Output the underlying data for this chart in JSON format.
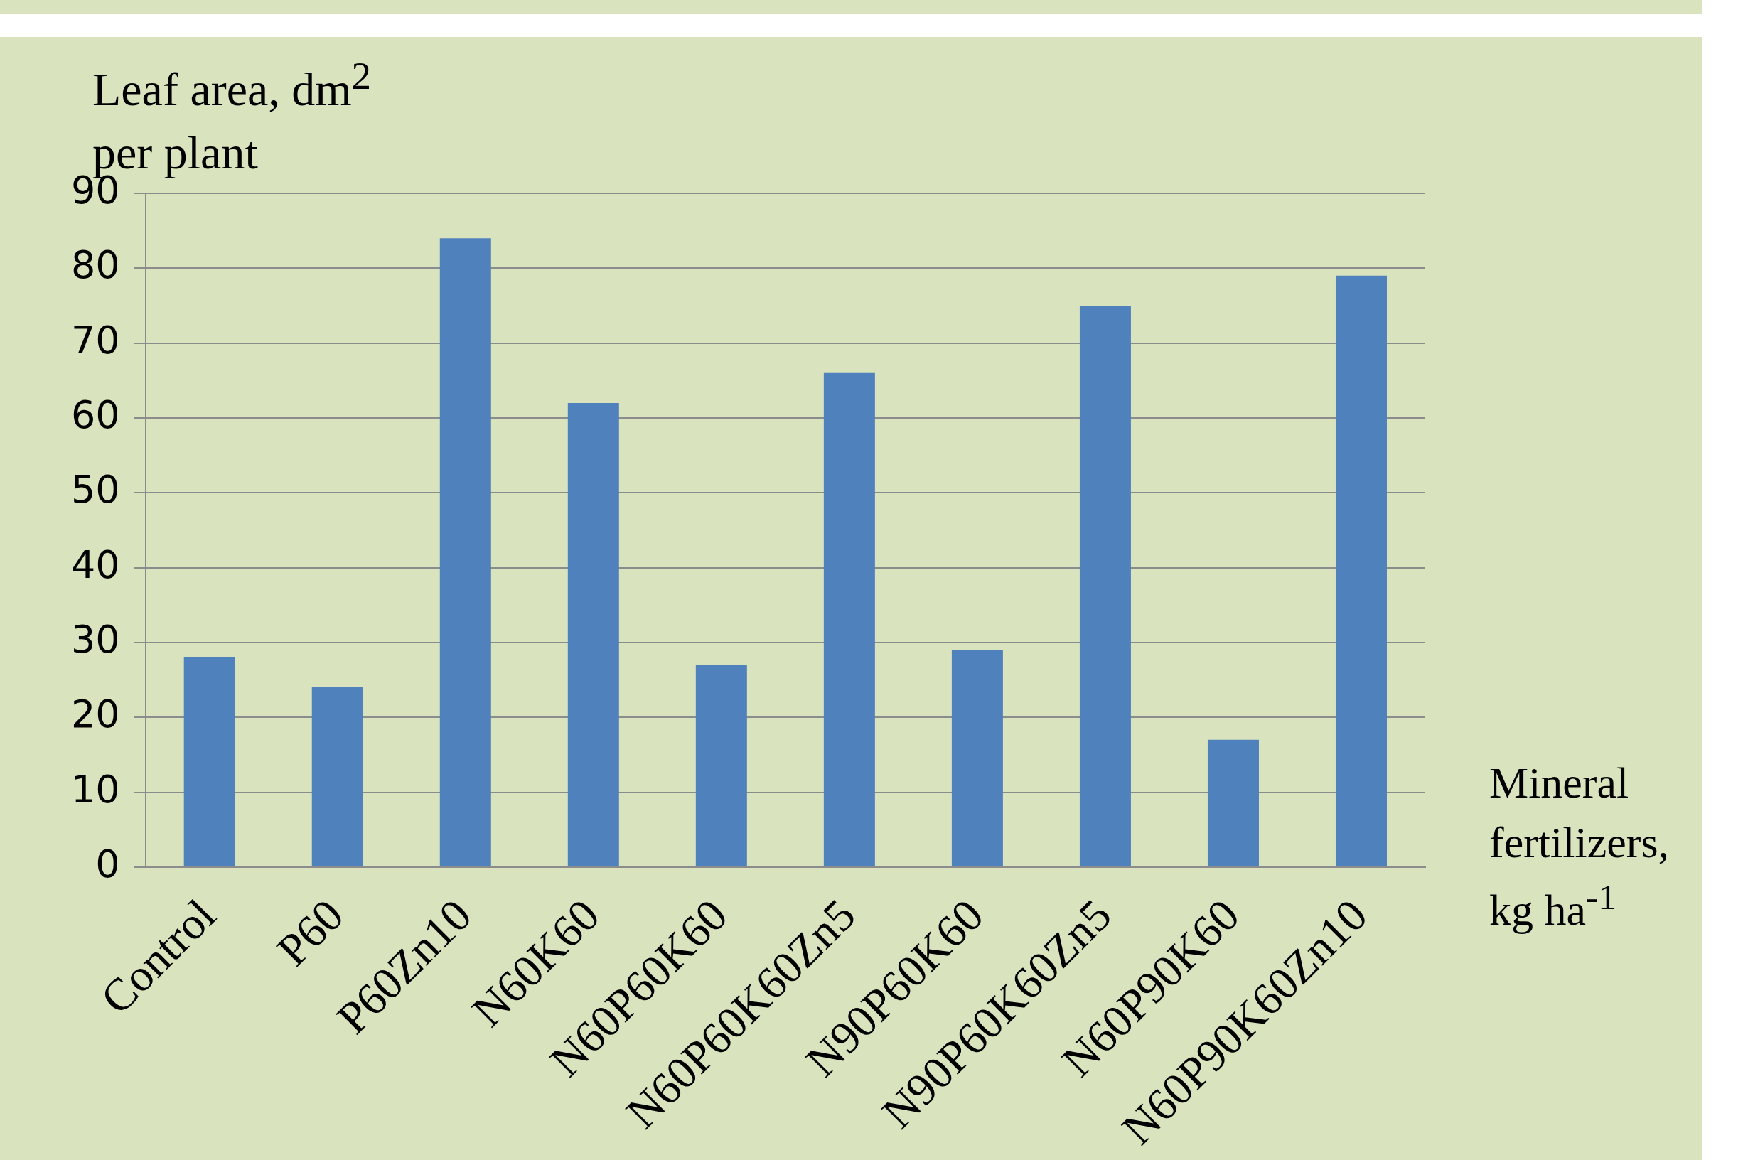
{
  "chart_data": {
    "type": "bar",
    "ylabel": "Leaf area, dm$^{2}$ per plant",
    "xlabel": "Mineral fertilizers, kg ha$^{-1}$",
    "categories": [
      "Control",
      "P60",
      "P60Zn10",
      "N60K60",
      "N60P60K60",
      "N60P60K60Zn5",
      "N90P60K60",
      "N90P60K60Zn5",
      "N60P90K60",
      "N60P90K60Zn10"
    ],
    "values": [
      28,
      24,
      84,
      62,
      27,
      66,
      29,
      75,
      17,
      79
    ],
    "color": "#4f81bd",
    "ylim": [
      0,
      90
    ],
    "yticks": [
      0,
      10,
      20,
      30,
      40,
      50,
      60,
      70,
      80,
      90
    ],
    "grid": "y",
    "legend": false
  }
}
